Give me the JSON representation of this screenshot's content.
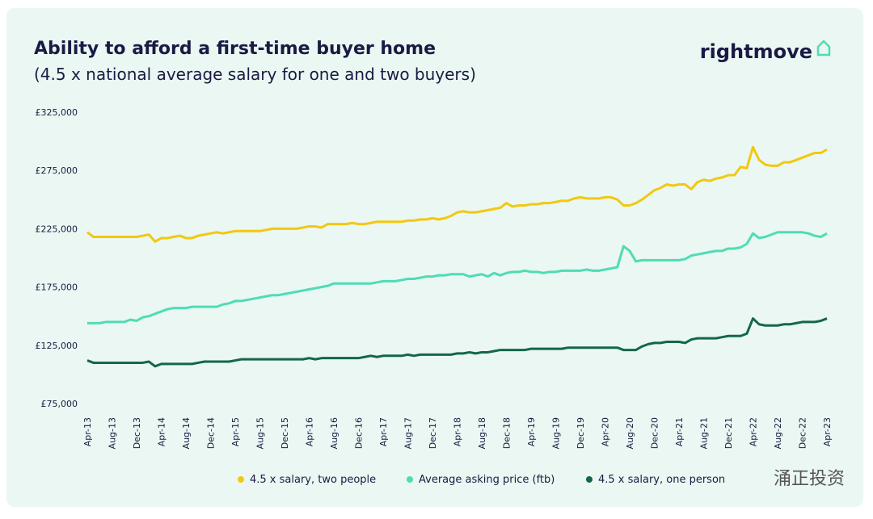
{
  "chart_data": {
    "type": "line",
    "title": "Ability to afford a first-time buyer home",
    "subtitle": "(4.5 x national average salary for one and two buyers)",
    "logo": "rightmove",
    "watermark": "涌正投资",
    "categories": [
      "Apr-13",
      null,
      null,
      null,
      "Aug-13",
      null,
      null,
      null,
      "Dec-13",
      null,
      null,
      null,
      "Apr-14",
      null,
      null,
      null,
      "Aug-14",
      null,
      null,
      null,
      "Dec-14",
      null,
      null,
      null,
      "Apr-15",
      null,
      null,
      null,
      "Aug-15",
      null,
      null,
      null,
      "Dec-15",
      null,
      null,
      null,
      "Apr-16",
      null,
      null,
      null,
      "Aug-16",
      null,
      null,
      null,
      "Dec-16",
      null,
      null,
      null,
      "Apr-17",
      null,
      null,
      null,
      "Aug-17",
      null,
      null,
      null,
      "Dec-17",
      null,
      null,
      null,
      "Apr-18",
      null,
      null,
      null,
      "Aug-18",
      null,
      null,
      null,
      "Dec-18",
      null,
      null,
      null,
      "Apr-19",
      null,
      null,
      null,
      "Aug-19",
      null,
      null,
      null,
      "Dec-19",
      null,
      null,
      null,
      "Apr-20",
      null,
      null,
      null,
      "Aug-20",
      null,
      null,
      null,
      "Dec-20",
      null,
      null,
      null,
      "Apr-21",
      null,
      null,
      null,
      "Aug-21",
      null,
      null,
      null,
      "Dec-21",
      null,
      null,
      null,
      "Apr-22",
      null,
      null,
      null,
      "Aug-22",
      null,
      null,
      null,
      "Dec-22",
      null,
      null,
      null,
      "Apr-23"
    ],
    "series": [
      {
        "name": "4.5 x salary, two people",
        "color": "#f2c811",
        "values": [
          222000,
          218000,
          218000,
          218000,
          218000,
          218000,
          218000,
          218000,
          218000,
          219000,
          220000,
          214000,
          217000,
          217000,
          218000,
          219000,
          217000,
          217000,
          219000,
          220000,
          221000,
          222000,
          221000,
          222000,
          223000,
          223000,
          223000,
          223000,
          223000,
          224000,
          225000,
          225000,
          225000,
          225000,
          225000,
          226000,
          227000,
          227000,
          226000,
          229000,
          229000,
          229000,
          229000,
          230000,
          229000,
          229000,
          230000,
          231000,
          231000,
          231000,
          231000,
          231000,
          232000,
          232000,
          233000,
          233000,
          234000,
          233000,
          234000,
          236000,
          239000,
          240000,
          239000,
          239000,
          240000,
          241000,
          242000,
          243000,
          247000,
          244000,
          245000,
          245000,
          246000,
          246000,
          247000,
          247000,
          248000,
          249000,
          249000,
          251000,
          252000,
          251000,
          251000,
          251000,
          252000,
          252000,
          250000,
          245000,
          245000,
          247000,
          250000,
          254000,
          258000,
          260000,
          263000,
          262000,
          263000,
          263000,
          259000,
          265000,
          267000,
          266000,
          268000,
          269000,
          271000,
          271000,
          278000,
          277000,
          295000,
          284000,
          280000,
          279000,
          279000,
          282000,
          282000,
          284000,
          286000,
          288000,
          290000,
          290000,
          293000
        ]
      },
      {
        "name": "Average asking price (ftb)",
        "color": "#4fdcb5",
        "values": [
          144000,
          144000,
          144000,
          145000,
          145000,
          145000,
          145000,
          147000,
          146000,
          149000,
          150000,
          152000,
          154000,
          156000,
          157000,
          157000,
          157000,
          158000,
          158000,
          158000,
          158000,
          158000,
          160000,
          161000,
          163000,
          163000,
          164000,
          165000,
          166000,
          167000,
          168000,
          168000,
          169000,
          170000,
          171000,
          172000,
          173000,
          174000,
          175000,
          176000,
          178000,
          178000,
          178000,
          178000,
          178000,
          178000,
          178000,
          179000,
          180000,
          180000,
          180000,
          181000,
          182000,
          182000,
          183000,
          184000,
          184000,
          185000,
          185000,
          186000,
          186000,
          186000,
          184000,
          185000,
          186000,
          184000,
          187000,
          185000,
          187000,
          188000,
          188000,
          189000,
          188000,
          188000,
          187000,
          188000,
          188000,
          189000,
          189000,
          189000,
          189000,
          190000,
          189000,
          189000,
          190000,
          191000,
          192000,
          210000,
          206000,
          197000,
          198000,
          198000,
          198000,
          198000,
          198000,
          198000,
          198000,
          199000,
          202000,
          203000,
          204000,
          205000,
          206000,
          206000,
          208000,
          208000,
          209000,
          212000,
          221000,
          217000,
          218000,
          220000,
          222000,
          222000,
          222000,
          222000,
          222000,
          221000,
          219000,
          218000,
          221000
        ]
      },
      {
        "name": "4.5 x salary, one person",
        "color": "#14664c",
        "values": [
          112000,
          110000,
          110000,
          110000,
          110000,
          110000,
          110000,
          110000,
          110000,
          110000,
          111000,
          107000,
          109000,
          109000,
          109000,
          109000,
          109000,
          109000,
          110000,
          111000,
          111000,
          111000,
          111000,
          111000,
          112000,
          113000,
          113000,
          113000,
          113000,
          113000,
          113000,
          113000,
          113000,
          113000,
          113000,
          113000,
          114000,
          113000,
          114000,
          114000,
          114000,
          114000,
          114000,
          114000,
          114000,
          115000,
          116000,
          115000,
          116000,
          116000,
          116000,
          116000,
          117000,
          116000,
          117000,
          117000,
          117000,
          117000,
          117000,
          117000,
          118000,
          118000,
          119000,
          118000,
          119000,
          119000,
          120000,
          121000,
          121000,
          121000,
          121000,
          121000,
          122000,
          122000,
          122000,
          122000,
          122000,
          122000,
          123000,
          123000,
          123000,
          123000,
          123000,
          123000,
          123000,
          123000,
          123000,
          121000,
          121000,
          121000,
          124000,
          126000,
          127000,
          127000,
          128000,
          128000,
          128000,
          127000,
          130000,
          131000,
          131000,
          131000,
          131000,
          132000,
          133000,
          133000,
          133000,
          135000,
          148000,
          143000,
          142000,
          142000,
          142000,
          143000,
          143000,
          144000,
          145000,
          145000,
          145000,
          146000,
          148000
        ]
      }
    ],
    "ylim": [
      75000,
      325000
    ],
    "yticks": [
      {
        "value": 75000,
        "label": "£75,000"
      },
      {
        "value": 125000,
        "label": "£125,000"
      },
      {
        "value": 175000,
        "label": "£175,000"
      },
      {
        "value": 225000,
        "label": "£225,000"
      },
      {
        "value": 275000,
        "label": "£275,000"
      },
      {
        "value": 325000,
        "label": "£325,000"
      }
    ],
    "grid": false,
    "legend": "bottom"
  }
}
